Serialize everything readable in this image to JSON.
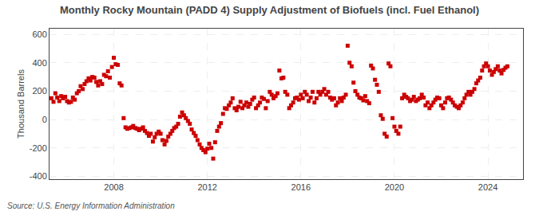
{
  "chart_data": {
    "type": "scatter",
    "title": "Monthly Rocky Mountain (PADD 4) Supply Adjustment of Biofuels (incl. Fuel Ethanol)",
    "ylabel": "Thousand Barrels",
    "annotations": [
      "Source: U.S. Energy Information Administration"
    ],
    "color": "#cc0000",
    "marker": "square",
    "grid": true,
    "xlim": [
      2005.25,
      2025.5
    ],
    "xticks": [
      2008,
      2012,
      2016,
      2020,
      2024
    ],
    "ylim": [
      -420,
      640
    ],
    "yticks": [
      -400,
      -200,
      0,
      200,
      400,
      600
    ],
    "x": [
      2005.33,
      2005.42,
      2005.5,
      2005.58,
      2005.67,
      2005.75,
      2005.83,
      2005.92,
      2006.0,
      2006.08,
      2006.17,
      2006.25,
      2006.33,
      2006.42,
      2006.5,
      2006.58,
      2006.67,
      2006.75,
      2006.83,
      2006.92,
      2007.0,
      2007.08,
      2007.17,
      2007.25,
      2007.33,
      2007.42,
      2007.5,
      2007.58,
      2007.67,
      2007.75,
      2007.83,
      2007.92,
      2008.0,
      2008.08,
      2008.17,
      2008.25,
      2008.33,
      2008.42,
      2008.5,
      2008.58,
      2008.67,
      2008.75,
      2008.83,
      2008.92,
      2009.0,
      2009.08,
      2009.17,
      2009.25,
      2009.33,
      2009.42,
      2009.5,
      2009.58,
      2009.67,
      2009.75,
      2009.83,
      2009.92,
      2010.0,
      2010.08,
      2010.17,
      2010.25,
      2010.33,
      2010.42,
      2010.5,
      2010.58,
      2010.67,
      2010.75,
      2010.83,
      2010.92,
      2011.0,
      2011.08,
      2011.17,
      2011.25,
      2011.33,
      2011.42,
      2011.5,
      2011.58,
      2011.67,
      2011.75,
      2011.83,
      2011.92,
      2012.0,
      2012.08,
      2012.17,
      2012.25,
      2012.33,
      2012.42,
      2012.5,
      2012.58,
      2012.67,
      2012.75,
      2012.83,
      2012.92,
      2013.0,
      2013.08,
      2013.17,
      2013.25,
      2013.33,
      2013.42,
      2013.5,
      2013.58,
      2013.67,
      2013.75,
      2013.83,
      2013.92,
      2014.0,
      2014.08,
      2014.17,
      2014.25,
      2014.33,
      2014.42,
      2014.5,
      2014.58,
      2014.67,
      2014.75,
      2014.83,
      2014.92,
      2015.0,
      2015.08,
      2015.17,
      2015.25,
      2015.33,
      2015.42,
      2015.5,
      2015.58,
      2015.67,
      2015.75,
      2015.83,
      2015.92,
      2016.0,
      2016.08,
      2016.17,
      2016.25,
      2016.33,
      2016.42,
      2016.5,
      2016.58,
      2016.67,
      2016.75,
      2016.83,
      2016.92,
      2017.0,
      2017.08,
      2017.17,
      2017.25,
      2017.33,
      2017.42,
      2017.5,
      2017.58,
      2017.67,
      2017.75,
      2017.83,
      2017.92,
      2018.0,
      2018.08,
      2018.17,
      2018.25,
      2018.33,
      2018.42,
      2018.5,
      2018.58,
      2018.67,
      2018.75,
      2018.83,
      2018.92,
      2019.0,
      2019.08,
      2019.17,
      2019.25,
      2019.33,
      2019.42,
      2019.5,
      2019.58,
      2019.67,
      2019.75,
      2019.83,
      2019.92,
      2020.0,
      2020.08,
      2020.17,
      2020.25,
      2020.33,
      2020.42,
      2020.5,
      2020.58,
      2020.67,
      2020.75,
      2020.83,
      2020.92,
      2021.0,
      2021.08,
      2021.17,
      2021.25,
      2021.33,
      2021.42,
      2021.5,
      2021.58,
      2021.67,
      2021.75,
      2021.83,
      2021.92,
      2022.0,
      2022.08,
      2022.17,
      2022.25,
      2022.33,
      2022.42,
      2022.5,
      2022.58,
      2022.67,
      2022.75,
      2022.83,
      2022.92,
      2023.0,
      2023.08,
      2023.17,
      2023.25,
      2023.33,
      2023.42,
      2023.5,
      2023.58,
      2023.67,
      2023.75,
      2023.83,
      2023.92,
      2024.0,
      2024.08,
      2024.17,
      2024.25,
      2024.33,
      2024.42,
      2024.5,
      2024.58,
      2024.67,
      2024.75,
      2024.83
    ],
    "values": [
      150,
      125,
      185,
      155,
      130,
      165,
      150,
      160,
      130,
      120,
      125,
      155,
      140,
      185,
      200,
      235,
      215,
      250,
      270,
      290,
      275,
      300,
      295,
      265,
      240,
      270,
      250,
      315,
      305,
      340,
      295,
      370,
      435,
      390,
      385,
      255,
      240,
      10,
      -55,
      -65,
      -60,
      -55,
      -45,
      -60,
      -65,
      -75,
      -65,
      -55,
      -80,
      -95,
      -115,
      -100,
      -155,
      -125,
      -100,
      -85,
      -100,
      -145,
      -175,
      -150,
      -120,
      -100,
      -80,
      -60,
      -50,
      -30,
      20,
      50,
      30,
      10,
      -10,
      -30,
      -70,
      -95,
      -115,
      -145,
      -175,
      -200,
      -215,
      -230,
      -205,
      -170,
      -200,
      -275,
      -160,
      -80,
      -50,
      -25,
      40,
      80,
      75,
      100,
      120,
      150,
      80,
      65,
      90,
      125,
      80,
      100,
      120,
      90,
      110,
      140,
      155,
      80,
      100,
      120,
      155,
      145,
      80,
      130,
      195,
      175,
      150,
      165,
      185,
      345,
      290,
      295,
      195,
      175,
      80,
      100,
      120,
      150,
      155,
      140,
      175,
      150,
      195,
      175,
      130,
      155,
      195,
      120,
      150,
      195,
      175,
      195,
      215,
      175,
      195,
      155,
      140,
      150,
      100,
      120,
      150,
      130,
      155,
      175,
      520,
      400,
      375,
      260,
      200,
      175,
      155,
      150,
      135,
      165,
      130,
      115,
      380,
      360,
      280,
      245,
      195,
      30,
      5,
      -100,
      -120,
      395,
      375,
      10,
      -50,
      -80,
      -100,
      -50,
      150,
      175,
      160,
      150,
      130,
      140,
      160,
      130,
      140,
      150,
      175,
      155,
      100,
      120,
      80,
      100,
      120,
      140,
      155,
      150,
      100,
      80,
      120,
      150,
      155,
      140,
      120,
      100,
      90,
      80,
      100,
      120,
      150,
      175,
      195,
      175,
      195,
      215,
      255,
      275,
      295,
      345,
      375,
      395,
      375,
      345,
      315,
      335,
      355,
      375,
      345,
      325,
      350,
      365,
      375
    ]
  }
}
